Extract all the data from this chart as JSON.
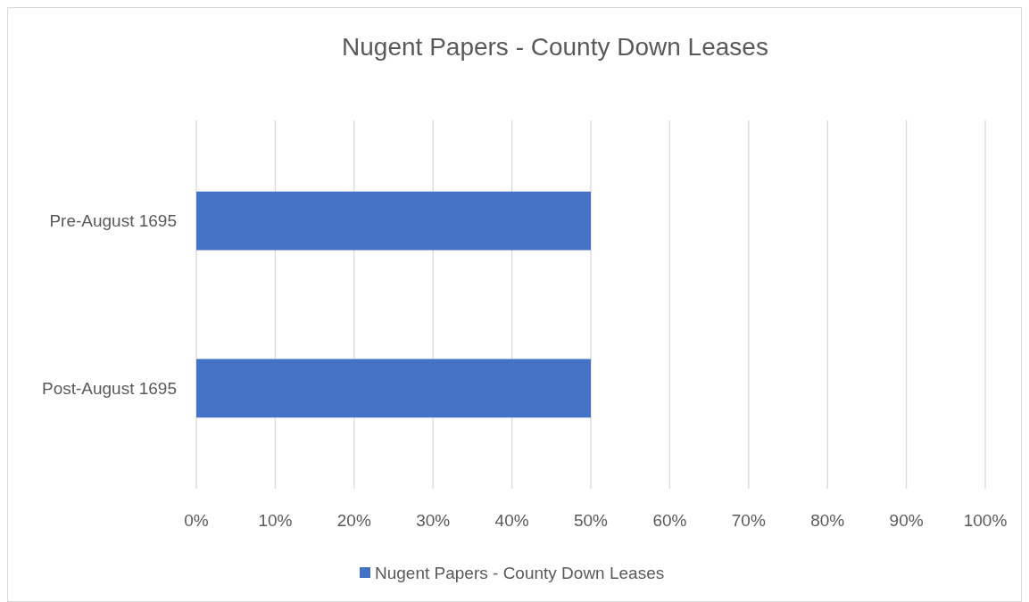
{
  "chart_data": {
    "type": "bar",
    "orientation": "horizontal",
    "title": "Nugent Papers - County Down Leases",
    "categories": [
      "Pre-August 1695",
      "Post-August 1695"
    ],
    "series": [
      {
        "name": "Nugent Papers - County Down Leases",
        "color": "#4472c4",
        "values": [
          50,
          50
        ]
      }
    ],
    "xlim": [
      0,
      100
    ],
    "xticks": [
      {
        "value": 0,
        "label": "0%"
      },
      {
        "value": 10,
        "label": "10%"
      },
      {
        "value": 20,
        "label": "20%"
      },
      {
        "value": 30,
        "label": "30%"
      },
      {
        "value": 40,
        "label": "40%"
      },
      {
        "value": 50,
        "label": "50%"
      },
      {
        "value": 60,
        "label": "60%"
      },
      {
        "value": 70,
        "label": "70%"
      },
      {
        "value": 80,
        "label": "80%"
      },
      {
        "value": 90,
        "label": "90%"
      },
      {
        "value": 100,
        "label": "100%"
      }
    ],
    "grid": "x",
    "legend": "bottom"
  }
}
